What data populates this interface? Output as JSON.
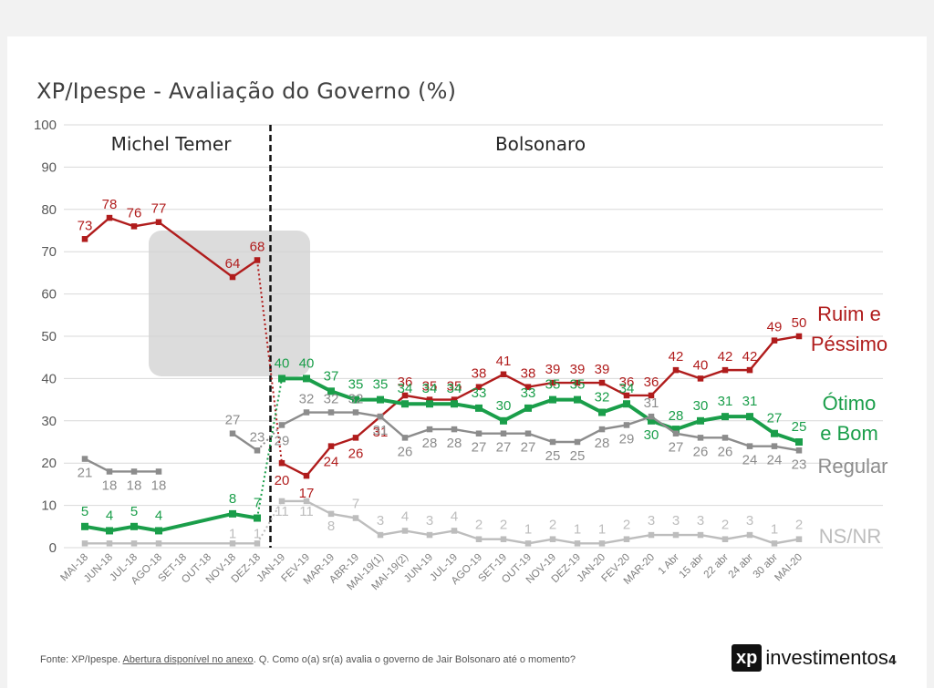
{
  "page": {
    "title": "XP/Ipespe - Avaliação do Governo (%)",
    "footer": {
      "source": "Fonte: XP/Ipespe.",
      "annex": "Abertura disponível no anexo",
      "question": ". Q. Como o(a) sr(a) avalia o governo de Jair Bolsonaro até o momento?"
    },
    "logo": {
      "mark": "xp",
      "text": "investimentos"
    },
    "page_number": "4"
  },
  "chart_data": {
    "type": "line",
    "title": "XP/Ipespe - Avaliação do Governo (%)",
    "xlabel": "",
    "ylabel": "",
    "ylim": [
      0,
      100
    ],
    "yticks": [
      0,
      10,
      20,
      30,
      40,
      50,
      60,
      70,
      80,
      90,
      100
    ],
    "grid": true,
    "legend": "right, labels next to series ends",
    "categories": [
      "MAI-18",
      "JUN-18",
      "JUL-18",
      "AGO-18",
      "SET-18",
      "OUT-18",
      "NOV-18",
      "DEZ-18",
      "JAN-19",
      "FEV-19",
      "MAR-19",
      "ABR-19",
      "MAI-19(1)",
      "MAI-19(2)",
      "JUN-19",
      "JUL-19",
      "AGO-19",
      "SET-19",
      "OUT-19",
      "NOV-19",
      "DEZ-19",
      "JAN-20",
      "FEV-20",
      "MAR-20",
      "1 Abr",
      "15 abr",
      "22 abr",
      "24 abr",
      "30 abr",
      "MAI-20"
    ],
    "periods": [
      {
        "label": "Michel Temer",
        "from": "MAI-18",
        "to": "DEZ-18"
      },
      {
        "label": "Bolsonaro",
        "from": "JAN-19",
        "to": "MAI-20"
      }
    ],
    "divider_between": [
      "DEZ-18",
      "JAN-19"
    ],
    "series": [
      {
        "name": "Ruim e Péssimo",
        "name_lines": [
          "Ruim e",
          "Péssimo"
        ],
        "color": "#b01c1c",
        "values": [
          73,
          78,
          76,
          77,
          null,
          null,
          64,
          68,
          20,
          17,
          24,
          26,
          31,
          36,
          35,
          35,
          38,
          41,
          38,
          39,
          39,
          39,
          36,
          36,
          42,
          40,
          42,
          42,
          49,
          50
        ],
        "label_values": [
          73,
          78,
          76,
          77,
          null,
          null,
          64,
          68,
          20,
          17,
          24,
          26,
          31,
          36,
          35,
          35,
          38,
          41,
          38,
          39,
          39,
          39,
          36,
          36,
          42,
          40,
          42,
          42,
          49,
          50
        ]
      },
      {
        "name": "Ótimo e Bom",
        "name_lines": [
          "Ótimo",
          "e Bom"
        ],
        "color": "#1a9e4a",
        "values": [
          5,
          4,
          5,
          4,
          null,
          null,
          8,
          7,
          40,
          40,
          37,
          35,
          35,
          34,
          34,
          34,
          33,
          30,
          33,
          35,
          35,
          32,
          34,
          30,
          28,
          30,
          31,
          31,
          27,
          25
        ],
        "label_values": [
          5,
          4,
          5,
          4,
          null,
          null,
          8,
          7,
          40,
          40,
          37,
          35,
          35,
          34,
          34,
          34,
          33,
          30,
          33,
          35,
          35,
          32,
          34,
          30,
          28,
          30,
          31,
          31,
          27,
          25
        ]
      },
      {
        "name": "Regular",
        "name_lines": [
          "Regular"
        ],
        "color": "#8c8c8c",
        "values": [
          21,
          18,
          18,
          18,
          null,
          null,
          27,
          23,
          29,
          32,
          32,
          32,
          31,
          26,
          28,
          28,
          27,
          27,
          27,
          25,
          25,
          28,
          29,
          31,
          27,
          26,
          26,
          24,
          24,
          23
        ],
        "label_values": [
          21,
          18,
          18,
          18,
          null,
          null,
          27,
          23,
          29,
          32,
          32,
          32,
          31,
          26,
          28,
          28,
          27,
          27,
          27,
          25,
          25,
          28,
          29,
          31,
          27,
          26,
          26,
          24,
          24,
          23
        ]
      },
      {
        "name": "NS/NR",
        "name_lines": [
          "NS/NR"
        ],
        "color": "#bdbdbd",
        "values": [
          1,
          1,
          1,
          1,
          null,
          null,
          1,
          1,
          11,
          11,
          8,
          7,
          3,
          4,
          3,
          4,
          2,
          2,
          1,
          2,
          1,
          1,
          2,
          3,
          3,
          3,
          2,
          3,
          1,
          2
        ],
        "label_values": [
          null,
          null,
          null,
          null,
          null,
          null,
          1,
          1,
          11,
          11,
          8,
          7,
          3,
          4,
          3,
          4,
          2,
          2,
          1,
          2,
          1,
          1,
          2,
          3,
          3,
          3,
          2,
          3,
          1,
          2
        ]
      }
    ]
  }
}
